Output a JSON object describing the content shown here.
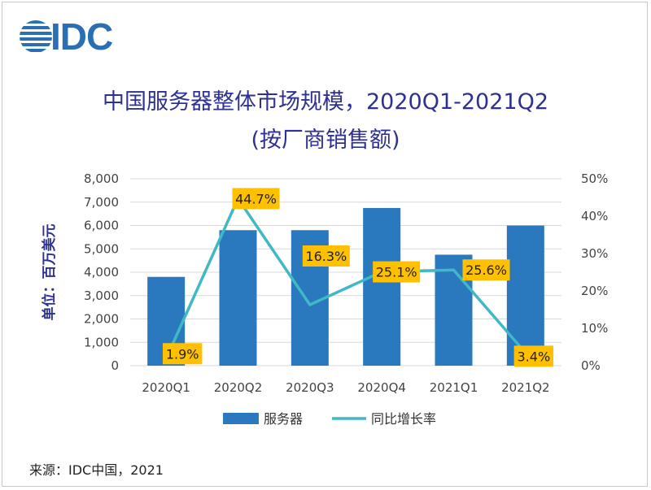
{
  "brand": {
    "logo_text": "IDC",
    "logo_color": "#2a6fb3"
  },
  "source": "来源：IDC中国，2021",
  "chart_data": {
    "type": "bar",
    "title": "中国服务器整体市场规模，2020Q1-2021Q2",
    "subtitle": "(按厂商销售额)",
    "ylabel": "单位：百万美元",
    "categories": [
      "2020Q1",
      "2020Q2",
      "2020Q3",
      "2020Q4",
      "2021Q1",
      "2021Q2"
    ],
    "ylim": [
      0,
      8000
    ],
    "yticks": [
      "0",
      "1,000",
      "2,000",
      "3,000",
      "4,000",
      "5,000",
      "6,000",
      "7,000",
      "8,000"
    ],
    "y2lim": [
      0,
      50
    ],
    "y2ticks": [
      "0%",
      "10%",
      "20%",
      "30%",
      "40%",
      "50%"
    ],
    "grid": true,
    "legend_position": "bottom",
    "series": [
      {
        "name": "服务器",
        "type": "bar",
        "color": "#2a78bd",
        "values": [
          3800,
          5800,
          5800,
          6750,
          4750,
          6000
        ]
      },
      {
        "name": "同比增长率",
        "type": "line",
        "axis": "right",
        "color": "#3fb9c6",
        "values": [
          1.9,
          44.7,
          16.3,
          25.1,
          25.6,
          3.4
        ],
        "labels": [
          "1.9%",
          "44.7%",
          "16.3%",
          "25.1%",
          "25.6%",
          "3.4%"
        ],
        "label_bg": "#ffc000"
      }
    ]
  }
}
